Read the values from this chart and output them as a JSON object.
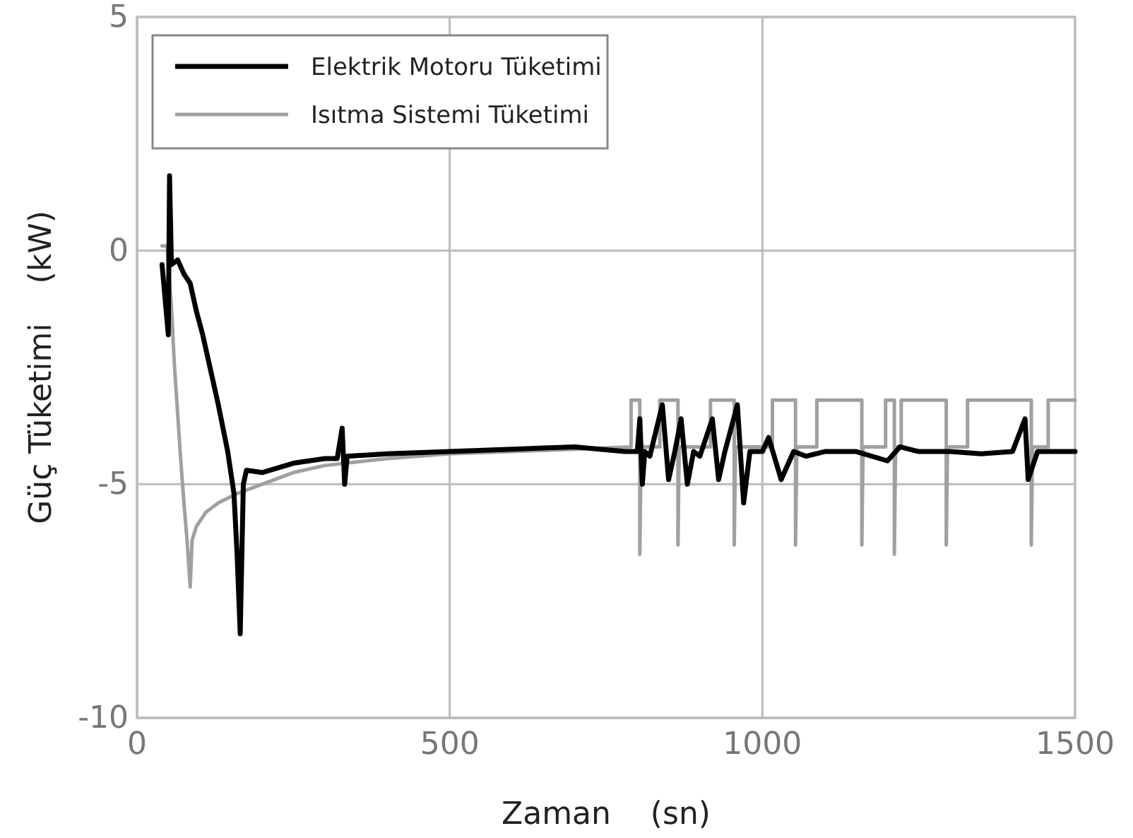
{
  "chart_data": {
    "type": "line",
    "xlabel": "Zaman    (sn)",
    "ylabel": "Güç Tüketimi    (kW)",
    "xlim": [
      0,
      1500
    ],
    "ylim": [
      -10,
      5
    ],
    "xticks": [
      0,
      500,
      1000,
      1500
    ],
    "yticks": [
      -10,
      -5,
      0,
      5
    ],
    "grid": true,
    "legend": "top left",
    "line_style": "solid",
    "marker": "none",
    "series": [
      {
        "name": "Elektrik Motoru Tüketimi",
        "color": "#000000",
        "x": [
          40,
          50,
          52,
          55,
          65,
          75,
          85,
          95,
          105,
          115,
          130,
          145,
          155,
          160,
          165,
          170,
          175,
          200,
          250,
          300,
          320,
          328,
          332,
          336,
          400,
          500,
          600,
          700,
          780,
          800,
          804,
          808,
          812,
          820,
          840,
          850,
          860,
          870,
          880,
          890,
          900,
          920,
          930,
          940,
          960,
          970,
          980,
          1000,
          1010,
          1030,
          1050,
          1070,
          1100,
          1150,
          1200,
          1220,
          1250,
          1300,
          1350,
          1400,
          1420,
          1425,
          1440,
          1470,
          1500
        ],
        "values": [
          -0.3,
          -1.8,
          1.6,
          -0.3,
          -0.2,
          -0.5,
          -0.7,
          -1.3,
          -1.8,
          -2.4,
          -3.3,
          -4.3,
          -5.2,
          -6.5,
          -8.2,
          -5.0,
          -4.7,
          -4.75,
          -4.55,
          -4.45,
          -4.45,
          -3.8,
          -5.0,
          -4.4,
          -4.35,
          -4.3,
          -4.25,
          -4.2,
          -4.3,
          -4.3,
          -3.6,
          -5.0,
          -4.3,
          -4.4,
          -3.3,
          -4.9,
          -4.3,
          -3.6,
          -5.0,
          -4.3,
          -4.4,
          -3.6,
          -4.9,
          -4.3,
          -3.3,
          -5.4,
          -4.3,
          -4.3,
          -4.0,
          -4.9,
          -4.3,
          -4.4,
          -4.3,
          -4.3,
          -4.5,
          -4.2,
          -4.3,
          -4.3,
          -4.35,
          -4.3,
          -3.6,
          -4.9,
          -4.3,
          -4.3,
          -4.3
        ]
      },
      {
        "name": "Isıtma Sistemi Tüketimi",
        "color": "#a0a0a0",
        "x": [
          40,
          48,
          55,
          60,
          65,
          70,
          75,
          80,
          85,
          88,
          95,
          110,
          130,
          160,
          200,
          250,
          300,
          400,
          500,
          600,
          700,
          790,
          790,
          804,
          804,
          806,
          836,
          836,
          865,
          865,
          867,
          917,
          917,
          955,
          955,
          957,
          1016,
          1016,
          1053,
          1053,
          1055,
          1087,
          1087,
          1159,
          1159,
          1161,
          1197,
          1197,
          1211,
          1211,
          1213,
          1222,
          1222,
          1294,
          1294,
          1296,
          1328,
          1328,
          1430,
          1430,
          1432,
          1457,
          1457,
          1500
        ],
        "values": [
          0.1,
          0.1,
          -1.2,
          -2.5,
          -3.5,
          -4.5,
          -5.4,
          -6.2,
          -7.2,
          -6.2,
          -5.9,
          -5.6,
          -5.4,
          -5.2,
          -5.0,
          -4.75,
          -4.6,
          -4.45,
          -4.35,
          -4.3,
          -4.25,
          -4.2,
          -3.2,
          -3.2,
          -6.5,
          -4.2,
          -4.2,
          -3.2,
          -3.2,
          -6.3,
          -4.2,
          -4.2,
          -3.2,
          -3.2,
          -6.3,
          -4.2,
          -4.2,
          -3.2,
          -3.2,
          -6.3,
          -4.2,
          -4.2,
          -3.2,
          -3.2,
          -6.3,
          -4.2,
          -4.2,
          -3.2,
          -3.2,
          -6.5,
          -4.2,
          -4.2,
          -3.2,
          -3.2,
          -6.3,
          -4.2,
          -4.2,
          -3.2,
          -3.2,
          -6.3,
          -4.2,
          -4.2,
          -3.2,
          -3.2
        ]
      }
    ]
  }
}
